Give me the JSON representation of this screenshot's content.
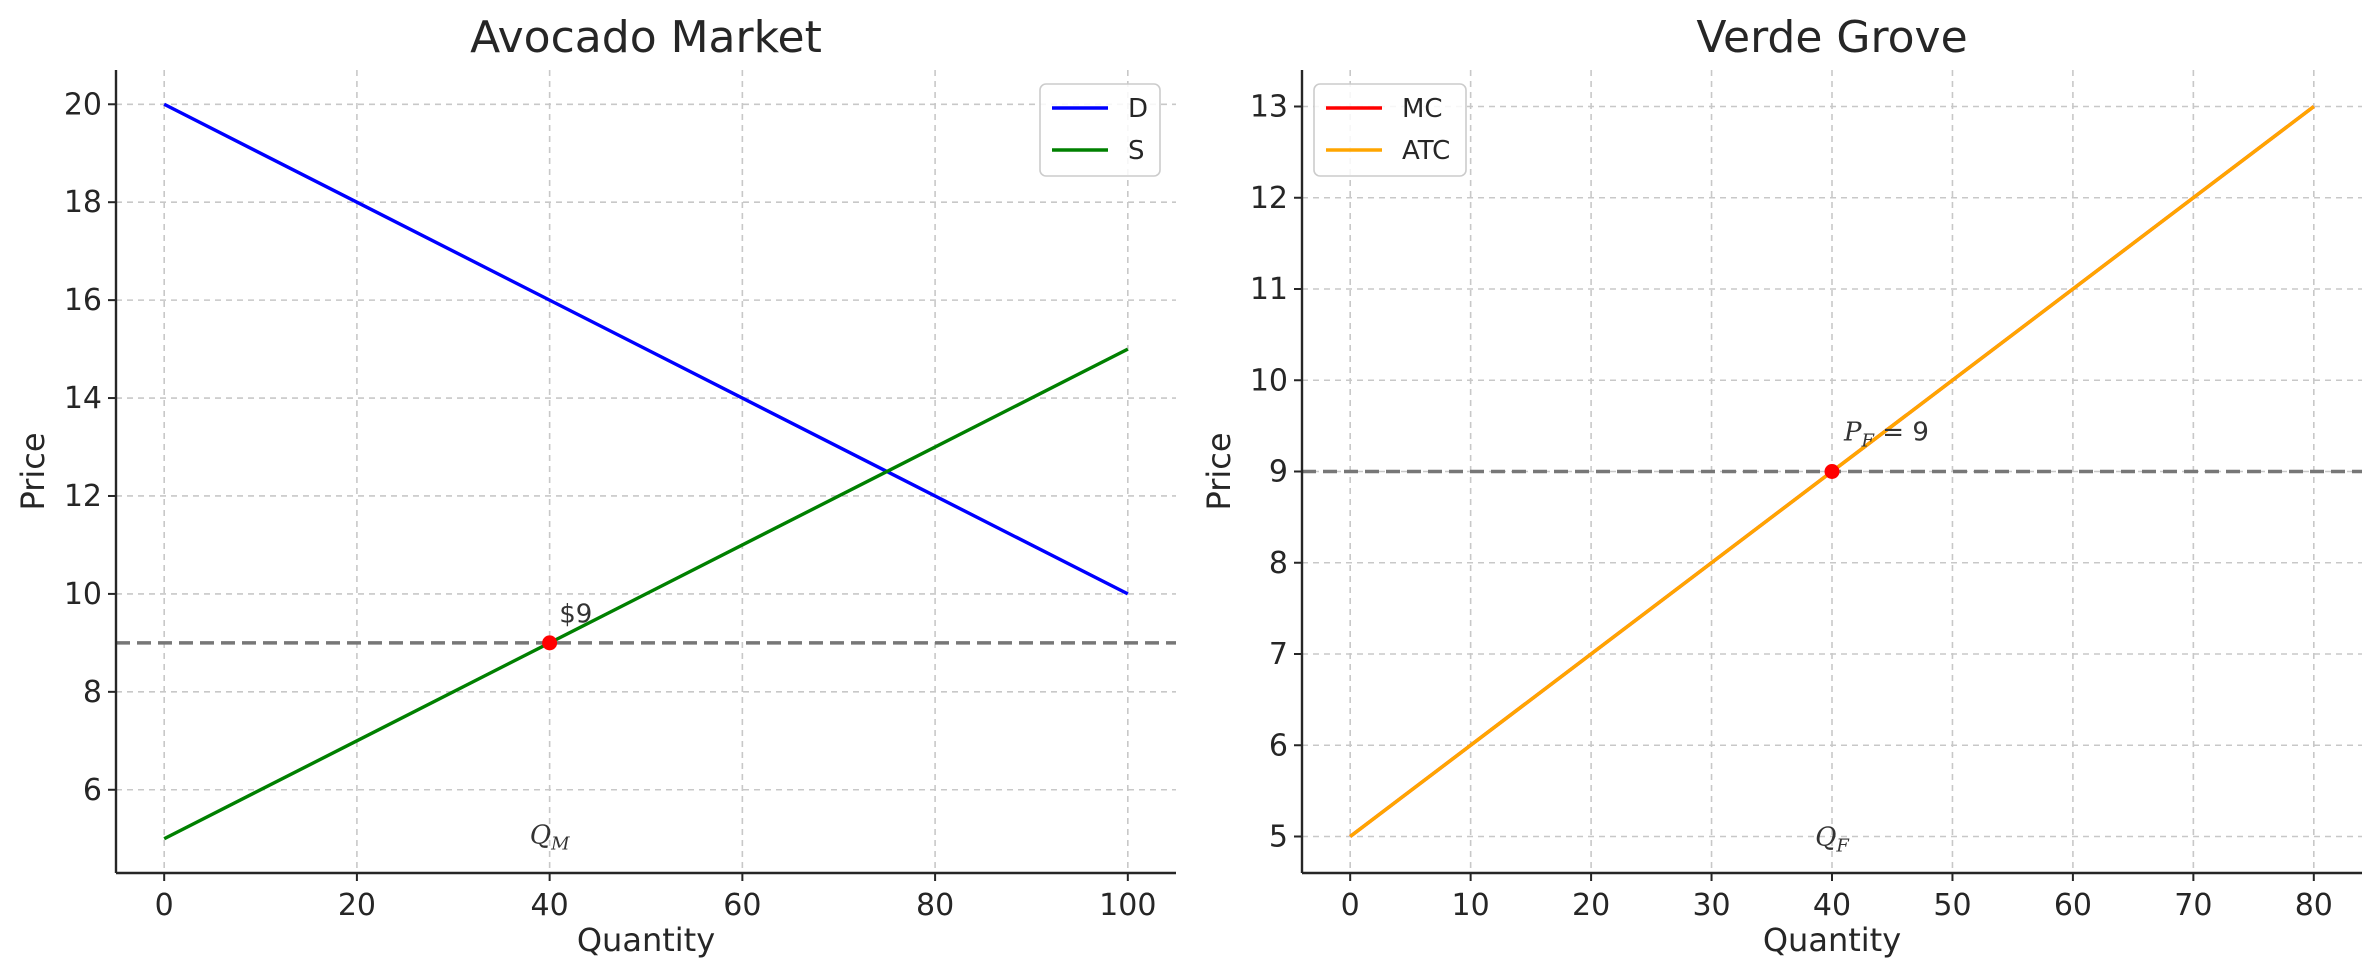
{
  "chart_data": [
    {
      "type": "line",
      "title": "Avocado Market",
      "xlabel": "Quantity",
      "ylabel": "Price",
      "xlim": [
        -5,
        105
      ],
      "ylim": [
        4.3,
        20.7
      ],
      "x_ticks": [
        0,
        20,
        40,
        60,
        80,
        100
      ],
      "y_ticks": [
        6,
        8,
        10,
        12,
        14,
        16,
        18,
        20
      ],
      "grid": true,
      "legend": "top-right",
      "series": [
        {
          "name": "D",
          "color": "#0000ff",
          "x": [
            0,
            100
          ],
          "y": [
            20,
            10
          ]
        },
        {
          "name": "S",
          "color": "#008000",
          "x": [
            0,
            100
          ],
          "y": [
            5,
            15
          ]
        }
      ],
      "hline": {
        "y": 9,
        "color": "#777777",
        "style": "dashed"
      },
      "point": {
        "x": 40,
        "y": 9,
        "color": "#ff0000"
      },
      "annotations": [
        {
          "text": "$9",
          "x": 41,
          "y": 9.25
        }
      ],
      "qlabel": {
        "main": "Q",
        "sub": "M",
        "x": 40,
        "y": 4.9
      }
    },
    {
      "type": "line",
      "title": "Verde Grove",
      "xlabel": "Quantity",
      "ylabel": "Price",
      "xlim": [
        -4,
        84
      ],
      "ylim": [
        4.6,
        13.4
      ],
      "x_ticks": [
        0,
        10,
        20,
        30,
        40,
        50,
        60,
        70,
        80
      ],
      "y_ticks": [
        5,
        6,
        7,
        8,
        9,
        10,
        11,
        12,
        13
      ],
      "grid": true,
      "legend": "top-left",
      "series": [
        {
          "name": "MC",
          "color": "#ff0000",
          "x": [
            0,
            80
          ],
          "y": [
            5,
            13
          ]
        },
        {
          "name": "ATC",
          "color": "#ffa500",
          "x": [
            0,
            80
          ],
          "y": [
            5,
            13
          ]
        }
      ],
      "hline": {
        "y": 9,
        "color": "#777777",
        "style": "dashed"
      },
      "point": {
        "x": 40,
        "y": 9,
        "color": "#ff0000"
      },
      "annotations": [
        {
          "text": "P_F = 9",
          "x": 41,
          "y": 9.25
        }
      ],
      "qlabel": {
        "main": "Q",
        "sub": "F",
        "x": 40,
        "y": 4.9
      }
    }
  ]
}
